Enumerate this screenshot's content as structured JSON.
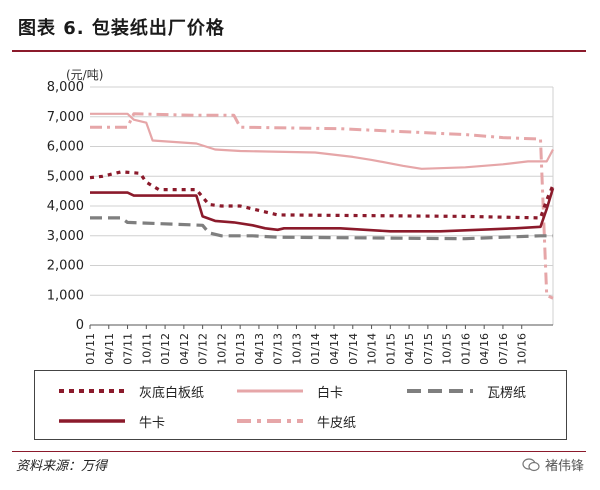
{
  "title": "图表 6. 包装纸出厂价格",
  "source": "资料来源：万得",
  "watermark": "褚伟锋",
  "watermark_icon": "wechat-icon",
  "chart_data": {
    "type": "line",
    "ylabel": "(元/吨)",
    "ylim": [
      0,
      8000
    ],
    "yticks": [
      0,
      1000,
      2000,
      3000,
      4000,
      5000,
      6000,
      7000,
      8000
    ],
    "ytick_labels": [
      "0",
      "1,000",
      "2,000",
      "3,000",
      "4,000",
      "5,000",
      "6,000",
      "7,000",
      "8,000"
    ],
    "x_start": "01/11",
    "x_months": 74,
    "xtick_labels": [
      "01/11",
      "04/11",
      "07/11",
      "10/11",
      "01/12",
      "04/12",
      "07/12",
      "10/12",
      "01/13",
      "04/13",
      "07/13",
      "10/13",
      "01/14",
      "04/14",
      "07/14",
      "10/14",
      "01/15",
      "04/15",
      "07/15",
      "10/15",
      "01/16",
      "04/16",
      "07/16",
      "10/16"
    ],
    "xtick_months": [
      0,
      3,
      6,
      9,
      12,
      15,
      18,
      21,
      24,
      27,
      30,
      33,
      36,
      39,
      42,
      45,
      48,
      51,
      54,
      57,
      60,
      63,
      66,
      69
    ],
    "grid": true,
    "legend_position": "bottom",
    "series": [
      {
        "name": "灰底白板纸",
        "color": "#8b1a2b",
        "dash": "dotted",
        "points": [
          [
            0,
            4950
          ],
          [
            2,
            5000
          ],
          [
            5,
            5150
          ],
          [
            8,
            5100
          ],
          [
            9,
            4800
          ],
          [
            11,
            4550
          ],
          [
            17,
            4550
          ],
          [
            18,
            4300
          ],
          [
            19,
            4050
          ],
          [
            21,
            4000
          ],
          [
            24,
            4000
          ],
          [
            28,
            3800
          ],
          [
            30,
            3700
          ],
          [
            60,
            3650
          ],
          [
            72,
            3600
          ],
          [
            73,
            4200
          ],
          [
            74,
            4700
          ]
        ]
      },
      {
        "name": "白卡",
        "color": "#e6a6a8",
        "dash": "solid",
        "points": [
          [
            0,
            7100
          ],
          [
            6,
            7100
          ],
          [
            7,
            6900
          ],
          [
            9,
            6800
          ],
          [
            10,
            6200
          ],
          [
            17,
            6100
          ],
          [
            20,
            5900
          ],
          [
            24,
            5850
          ],
          [
            36,
            5800
          ],
          [
            42,
            5650
          ],
          [
            45,
            5550
          ],
          [
            50,
            5350
          ],
          [
            53,
            5250
          ],
          [
            60,
            5300
          ],
          [
            66,
            5400
          ],
          [
            70,
            5500
          ],
          [
            73,
            5500
          ],
          [
            74,
            5900
          ]
        ]
      },
      {
        "name": "瓦楞纸",
        "color": "#7f7f7f",
        "dash": "dashed",
        "points": [
          [
            0,
            3600
          ],
          [
            5,
            3600
          ],
          [
            6,
            3450
          ],
          [
            18,
            3350
          ],
          [
            19,
            3100
          ],
          [
            21,
            3000
          ],
          [
            26,
            3000
          ],
          [
            30,
            2950
          ],
          [
            60,
            2900
          ],
          [
            66,
            2950
          ],
          [
            72,
            3000
          ],
          [
            74,
            3000
          ]
        ]
      },
      {
        "name": "牛卡",
        "color": "#8b1a2b",
        "dash": "solid",
        "points": [
          [
            0,
            4450
          ],
          [
            6,
            4450
          ],
          [
            7,
            4350
          ],
          [
            17,
            4350
          ],
          [
            18,
            3650
          ],
          [
            20,
            3500
          ],
          [
            23,
            3450
          ],
          [
            26,
            3350
          ],
          [
            28,
            3250
          ],
          [
            30,
            3200
          ],
          [
            31,
            3250
          ],
          [
            40,
            3250
          ],
          [
            48,
            3150
          ],
          [
            56,
            3150
          ],
          [
            62,
            3200
          ],
          [
            68,
            3250
          ],
          [
            72,
            3300
          ],
          [
            73,
            3900
          ],
          [
            74,
            4600
          ]
        ]
      },
      {
        "name": "牛皮纸",
        "color": "#e6a6a8",
        "dash": "dashdot",
        "points": [
          [
            0,
            6650
          ],
          [
            6,
            6650
          ],
          [
            7,
            7100
          ],
          [
            17,
            7050
          ],
          [
            23,
            7050
          ],
          [
            24,
            6650
          ],
          [
            40,
            6600
          ],
          [
            60,
            6400
          ],
          [
            66,
            6300
          ],
          [
            72,
            6250
          ],
          [
            73,
            1000
          ],
          [
            74,
            900
          ]
        ]
      }
    ]
  }
}
